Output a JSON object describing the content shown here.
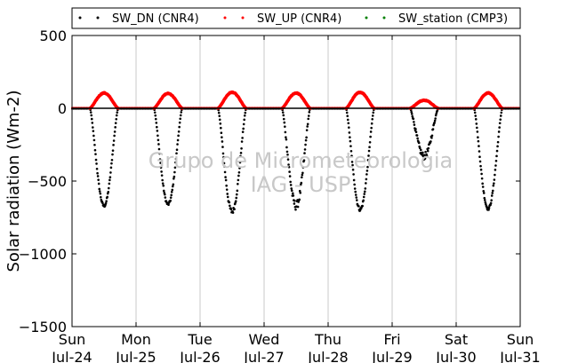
{
  "chart_data": {
    "type": "scatter",
    "ylabel": "Solar radiation (Wm-2)",
    "ylim": [
      -1500,
      500
    ],
    "yticks": [
      500,
      0,
      -500,
      -1000,
      -1500
    ],
    "ytick_labels": [
      "500",
      "0",
      "−500",
      "−1000",
      "−1500"
    ],
    "xlim": [
      0,
      7
    ],
    "xticks": [
      {
        "x": 0,
        "day": "Sun",
        "date": "Jul-24"
      },
      {
        "x": 1,
        "day": "Mon",
        "date": "Jul-25"
      },
      {
        "x": 2,
        "day": "Tue",
        "date": "Jul-26"
      },
      {
        "x": 3,
        "day": "Wed",
        "date": "Jul-27"
      },
      {
        "x": 4,
        "day": "Thu",
        "date": "Jul-28"
      },
      {
        "x": 5,
        "day": "Fri",
        "date": "Jul-29"
      },
      {
        "x": 6,
        "day": "Sat",
        "date": "Jul-30"
      },
      {
        "x": 7,
        "day": "Sun",
        "date": "Jul-31"
      }
    ],
    "grid": "vertical",
    "zero_line": true,
    "legend": {
      "placement": "top",
      "entries": [
        {
          "label": "SW_DN (CNR4)",
          "color": "#000000"
        },
        {
          "label": "SW_UP (CNR4)",
          "color": "#ff0000"
        },
        {
          "label": "SW_station (CMP3)",
          "color": "#008000"
        }
      ]
    },
    "watermark": [
      "Grupo de Micrometeorologia",
      "IAG - USP"
    ],
    "series": [
      {
        "name": "SW_DN (CNR4)",
        "color": "#000000",
        "days": [
          {
            "day": "Jul-24",
            "peak": -670,
            "noise": 20
          },
          {
            "day": "Jul-25",
            "peak": -660,
            "noise": 20
          },
          {
            "day": "Jul-26",
            "peak": -710,
            "noise": 35
          },
          {
            "day": "Jul-27",
            "peak": -670,
            "noise": 60
          },
          {
            "day": "Jul-28",
            "peak": -695,
            "noise": 25
          },
          {
            "day": "Jul-29",
            "peak": -330,
            "noise": 50
          },
          {
            "day": "Jul-30",
            "peak": -690,
            "noise": 20
          }
        ]
      },
      {
        "name": "SW_UP (CNR4)",
        "color": "#ff0000",
        "days": [
          {
            "day": "Jul-24",
            "peak": 105
          },
          {
            "day": "Jul-25",
            "peak": 102
          },
          {
            "day": "Jul-26",
            "peak": 110
          },
          {
            "day": "Jul-27",
            "peak": 105
          },
          {
            "day": "Jul-28",
            "peak": 110
          },
          {
            "day": "Jul-29",
            "peak": 55
          },
          {
            "day": "Jul-30",
            "peak": 105
          }
        ]
      },
      {
        "name": "SW_station (CMP3)",
        "color": "#008000",
        "days": []
      }
    ]
  }
}
